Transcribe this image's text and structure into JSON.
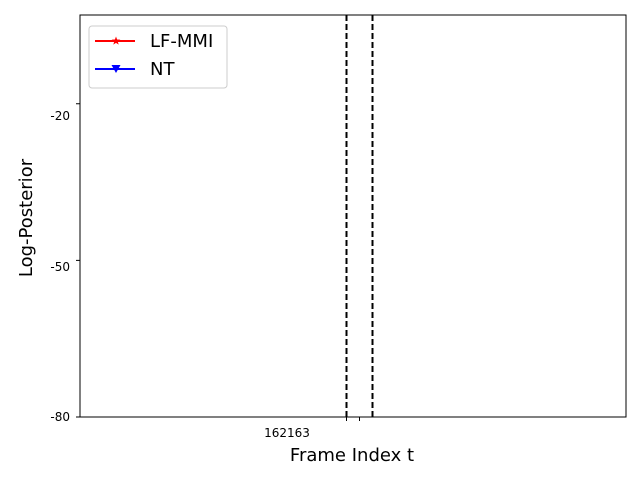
{
  "chart_data": {
    "type": "line",
    "title": "",
    "xlabel": "Frame Index t",
    "ylabel": "Log-Posterior",
    "xlim": [
      141.5,
      183.5
    ],
    "ylim": [
      -80,
      -3
    ],
    "x_ticks": [
      162,
      163
    ],
    "y_ticks": [
      -20,
      -50,
      -80
    ],
    "grid": false,
    "legend_position": "top-left",
    "series": [
      {
        "name": "LF-MMI",
        "color": "#ff0000",
        "marker": "star",
        "x": [],
        "y": []
      },
      {
        "name": "NT",
        "color": "#0000ff",
        "marker": "triangle-down",
        "x": [],
        "y": []
      }
    ],
    "vertical_lines": [
      {
        "x": 162,
        "style": "dashed",
        "color": "#000000"
      },
      {
        "x": 164,
        "style": "dashed",
        "color": "#000000"
      }
    ]
  }
}
